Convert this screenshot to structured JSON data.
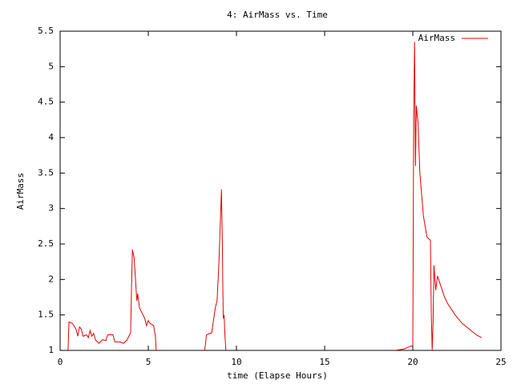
{
  "chart_data": {
    "type": "line",
    "title": "4: AirMass vs. Time",
    "xlabel": "time (Elapse Hours)",
    "ylabel": "AirMass",
    "x": [
      0.45,
      0.5,
      0.7,
      0.9,
      1.0,
      1.1,
      1.2,
      1.3,
      1.5,
      1.6,
      1.7,
      1.8,
      1.9,
      2.0,
      2.2,
      2.4,
      2.6,
      2.7,
      3.0,
      3.1,
      3.4,
      3.6,
      3.8,
      3.9,
      4.0,
      4.05,
      4.1,
      4.2,
      4.3,
      4.35,
      4.4,
      4.5,
      4.6,
      4.7,
      4.8,
      4.9,
      5.0,
      5.1,
      5.3,
      5.4,
      5.45,
      7.0,
      8.2,
      8.3,
      8.6,
      8.8,
      8.9,
      9.0,
      9.1,
      9.15,
      9.2,
      9.25,
      9.3,
      9.35,
      9.4,
      15.0,
      19.0,
      19.5,
      20.0,
      20.05,
      20.1,
      20.15,
      20.2,
      20.3,
      20.4,
      20.6,
      20.8,
      21.0,
      21.05,
      21.1,
      21.15,
      21.2,
      21.3,
      21.4,
      21.6,
      21.8,
      22.0,
      22.4,
      22.8,
      23.2,
      23.6,
      23.9
    ],
    "series": [
      {
        "name": "AirMass",
        "color": "#e00000",
        "values": [
          1.0,
          1.4,
          1.38,
          1.3,
          1.2,
          1.33,
          1.3,
          1.2,
          1.22,
          1.18,
          1.28,
          1.2,
          1.24,
          1.15,
          1.1,
          1.15,
          1.14,
          1.22,
          1.22,
          1.12,
          1.12,
          1.1,
          1.15,
          1.2,
          1.25,
          1.9,
          2.42,
          2.3,
          1.9,
          1.7,
          1.8,
          1.6,
          1.55,
          1.5,
          1.45,
          1.35,
          1.42,
          1.38,
          1.35,
          1.2,
          1.0,
          null,
          1.0,
          1.22,
          1.25,
          1.6,
          1.7,
          2.2,
          2.9,
          3.27,
          2.5,
          1.45,
          1.5,
          1.2,
          1.0,
          null,
          1.0,
          1.02,
          1.07,
          4.3,
          5.35,
          3.6,
          4.45,
          4.2,
          3.5,
          2.9,
          2.6,
          2.55,
          1.5,
          1.0,
          1.4,
          2.2,
          1.85,
          2.05,
          1.9,
          1.75,
          1.65,
          1.5,
          1.38,
          1.3,
          1.22,
          1.18
        ]
      }
    ],
    "xlim": [
      0,
      25
    ],
    "xticks": [
      0,
      5,
      10,
      15,
      20,
      25
    ],
    "ylim": [
      1,
      5.5
    ],
    "yticks": [
      1,
      1.5,
      2,
      2.5,
      3,
      3.5,
      4,
      4.5,
      5,
      5.5
    ],
    "legend": "top-right"
  }
}
